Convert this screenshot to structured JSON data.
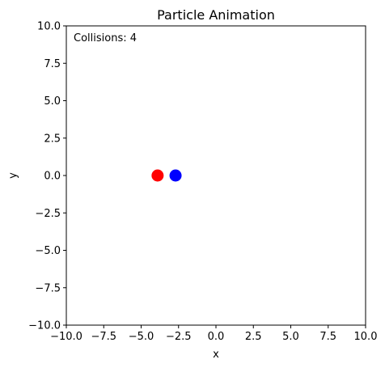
{
  "chart_data": {
    "type": "scatter",
    "title": "Particle Animation",
    "xlabel": "x",
    "ylabel": "y",
    "xlim": [
      -10,
      10
    ],
    "ylim": [
      -10,
      10
    ],
    "xticks": [
      -10,
      -7.5,
      -5,
      -2.5,
      0,
      2.5,
      5,
      7.5,
      10
    ],
    "yticks": [
      -10,
      -7.5,
      -5,
      -2.5,
      0,
      2.5,
      5,
      7.5,
      10
    ],
    "xtick_labels": [
      "−10.0",
      "−7.5",
      "−5.0",
      "−2.5",
      "0.0",
      "2.5",
      "5.0",
      "7.5",
      "10.0"
    ],
    "ytick_labels": [
      "−10.0",
      "−7.5",
      "−5.0",
      "−2.5",
      "0.0",
      "2.5",
      "5.0",
      "7.5",
      "10.0"
    ],
    "grid": false,
    "annotation": "Collisions: 4",
    "points": [
      {
        "x": -3.9,
        "y": 0.0,
        "color": "#ff0000"
      },
      {
        "x": -2.7,
        "y": 0.0,
        "color": "#0000ff"
      }
    ]
  }
}
